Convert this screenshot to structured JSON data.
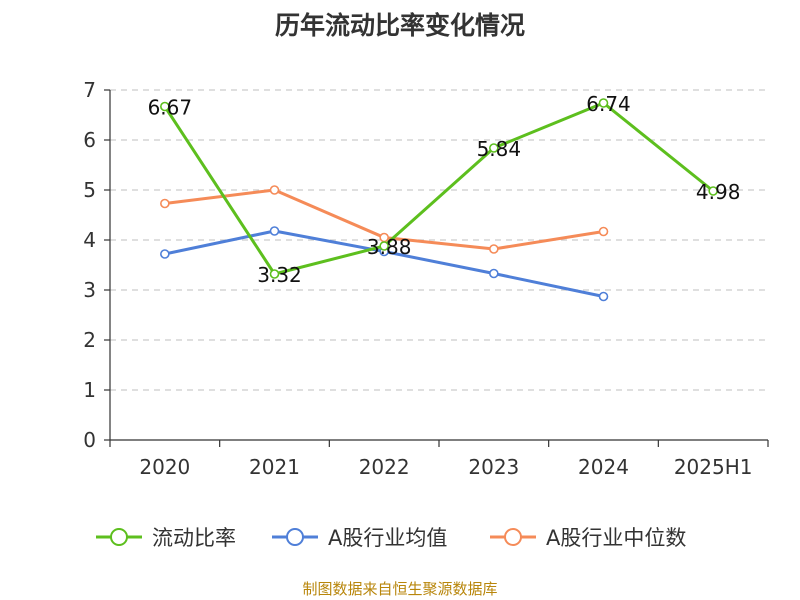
{
  "title": "历年流动比率变化情况",
  "source": "制图数据来自恒生聚源数据库",
  "chart_data": {
    "type": "line",
    "categories": [
      "2020",
      "2021",
      "2022",
      "2023",
      "2024",
      "2025H1"
    ],
    "ylim": [
      0,
      7
    ],
    "yticks": [
      "0",
      "1",
      "2",
      "3",
      "4",
      "5",
      "6",
      "7"
    ],
    "grid": true,
    "legend_position": "bottom",
    "series": [
      {
        "name": "流动比率",
        "color": "#5dbf1e",
        "values": [
          6.67,
          3.32,
          3.88,
          5.84,
          6.74,
          4.98
        ],
        "labels": [
          "6.67",
          "3.32",
          "3.88",
          "5.84",
          "6.74",
          "4.98"
        ]
      },
      {
        "name": "A股行业均值",
        "color": "#4f7fd8",
        "values": [
          3.72,
          4.18,
          3.77,
          3.33,
          2.87,
          null
        ]
      },
      {
        "name": "A股行业中位数",
        "color": "#f58b58",
        "values": [
          4.73,
          5.0,
          4.05,
          3.82,
          4.17,
          null
        ]
      }
    ]
  }
}
